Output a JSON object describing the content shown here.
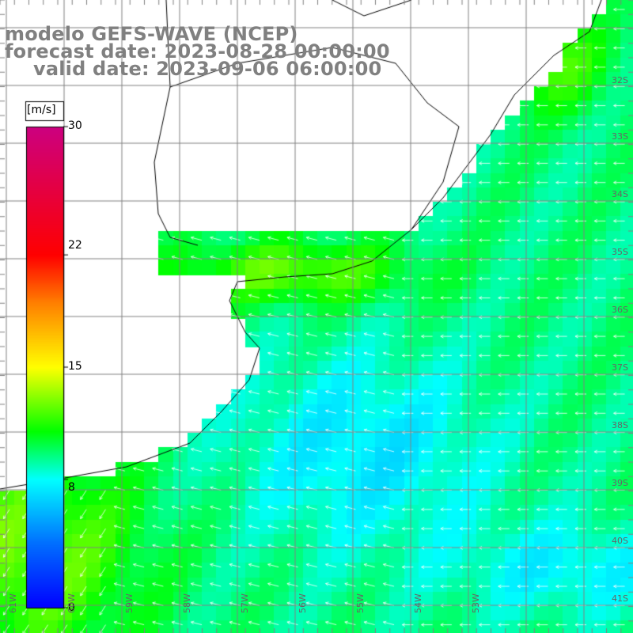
{
  "title": {
    "line1": "modelo GEFS-WAVE (NCEP)",
    "line2": "forecast date: 2023-08-28 00:00:00",
    "line3": "valid date: 2023-09-06 06:00:00"
  },
  "colorbar": {
    "unit": "[m/s]",
    "min": 0,
    "max": 30,
    "ticks": [
      "30",
      "22",
      "15",
      "8",
      "0"
    ],
    "tick_values": [
      30,
      22,
      15,
      8,
      0
    ],
    "colors": [
      "#0000ff",
      "#00a0ff",
      "#00ffff",
      "#00ff00",
      "#ffff00",
      "#ff8000",
      "#ff0000",
      "#cc0080"
    ]
  },
  "map": {
    "lat_labels": [
      "32S",
      "33S",
      "34S",
      "35S",
      "36S",
      "37S",
      "38S",
      "39S",
      "40S",
      "41S"
    ],
    "lon_labels": [
      "61W",
      "60W",
      "59W",
      "58W",
      "57W",
      "56W",
      "55W",
      "54W",
      "53W"
    ],
    "land_color": "#ffffff",
    "grid_color": "#808080",
    "coast_color": "#000000",
    "arrow_color": "#ffffff"
  }
}
